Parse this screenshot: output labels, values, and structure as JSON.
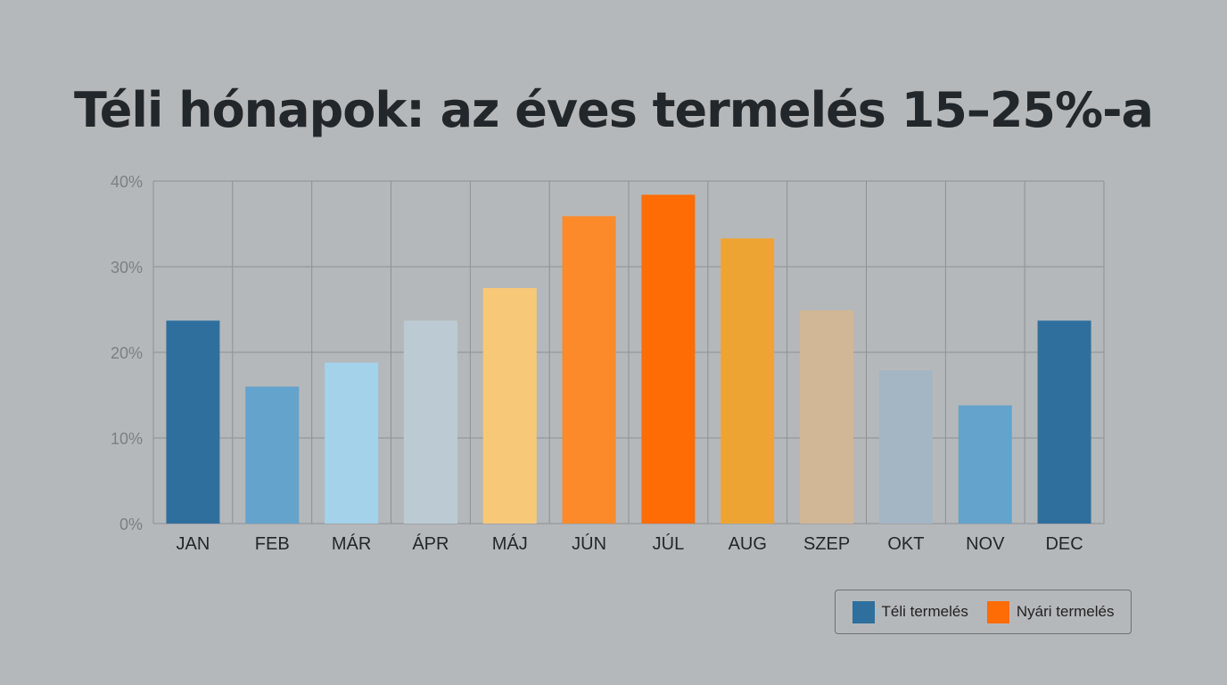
{
  "chart_data": {
    "type": "bar",
    "title": "Téli hónapok: az éves termelés 15–25%-a",
    "categories": [
      "JAN",
      "FEB",
      "MÁR",
      "ÁPR",
      "MÁJ",
      "JÚN",
      "JÚL",
      "AUG",
      "SZEP",
      "OKT",
      "NOV",
      "DEC"
    ],
    "values": [
      23.7,
      16.0,
      18.8,
      23.7,
      27.5,
      35.9,
      38.4,
      33.3,
      24.9,
      17.9,
      13.8,
      23.7
    ],
    "bar_colors": [
      "#2e6f9e",
      "#63a3cc",
      "#a3d2ea",
      "#bccbd3",
      "#f7c877",
      "#fd8a2a",
      "#fe6c05",
      "#eea433",
      "#d1b796",
      "#a4b5c3",
      "#63a3cc",
      "#2e6f9e"
    ],
    "ylim": [
      0,
      40
    ],
    "yticks": [
      0,
      10,
      20,
      30,
      40
    ],
    "ytick_labels": [
      "0%",
      "10%",
      "20%",
      "30%",
      "40%"
    ],
    "grid": true,
    "legend_position": "bottom-right",
    "legend": [
      {
        "label": "Téli termelés",
        "color": "#2e6f9e"
      },
      {
        "label": "Nyári termelés",
        "color": "#fe6c05"
      }
    ]
  }
}
